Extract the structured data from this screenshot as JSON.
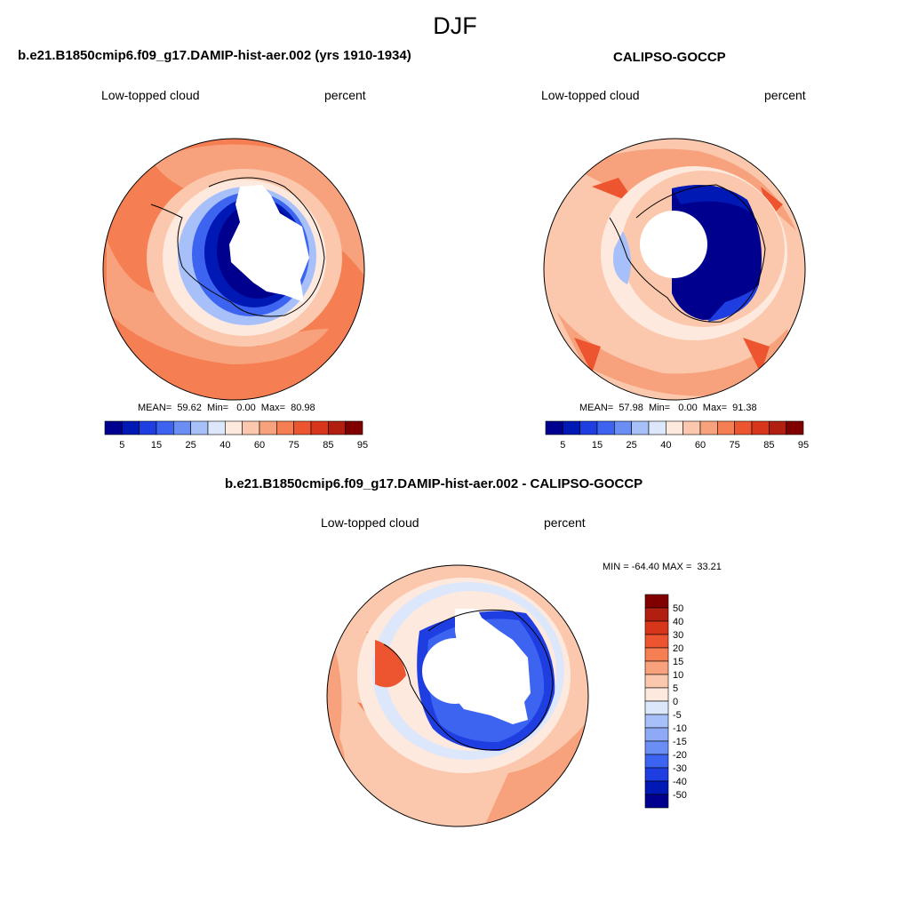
{
  "season": "DJF",
  "colors": {
    "seq": [
      "#00008f",
      "#0018b4",
      "#1e3ee2",
      "#3c64f0",
      "#6b8ef5",
      "#a7c0fa",
      "#dce7fc",
      "#fde9de",
      "#fbc8ad",
      "#f7a27c",
      "#f57e52",
      "#ed5530",
      "#d8361a",
      "#b01f10",
      "#800000"
    ],
    "diff": [
      "#00008f",
      "#0018b4",
      "#1e3ee2",
      "#3c64f0",
      "#6b8ef5",
      "#8eaaf7",
      "#a7c0fa",
      "#dce7fc",
      "#fde9de",
      "#fbc8ad",
      "#f7a27c",
      "#f57e52",
      "#ed5530",
      "#d8361a",
      "#b01f10",
      "#800000"
    ]
  },
  "panels": [
    {
      "title": "b.e21.B1850cmip6.f09_g17.DAMIP-hist-aer.002 (yrs 1910-1934)",
      "variable": "Low-topped cloud",
      "units": "percent",
      "stats": "MEAN=  59.62  Min=   0.00  Max=  80.98",
      "colorbar_labels": [
        "5",
        "15",
        "25",
        "40",
        "60",
        "75",
        "85",
        "95"
      ]
    },
    {
      "title": "CALIPSO-GOCCP",
      "variable": "Low-topped cloud",
      "units": "percent",
      "stats": "MEAN=  57.98  Min=   0.00  Max=  91.38",
      "colorbar_labels": [
        "5",
        "15",
        "25",
        "40",
        "60",
        "75",
        "85",
        "95"
      ]
    },
    {
      "title": "b.e21.B1850cmip6.f09_g17.DAMIP-hist-aer.002 - CALIPSO-GOCCP",
      "variable": "Low-topped cloud",
      "units": "percent",
      "stats": "MIN = -64.40 MAX =  33.21",
      "colorbar_labels": [
        "50",
        "40",
        "30",
        "20",
        "15",
        "10",
        "5",
        "0",
        "-5",
        "-10",
        "-15",
        "-20",
        "-30",
        "-40",
        "-50"
      ]
    }
  ]
}
